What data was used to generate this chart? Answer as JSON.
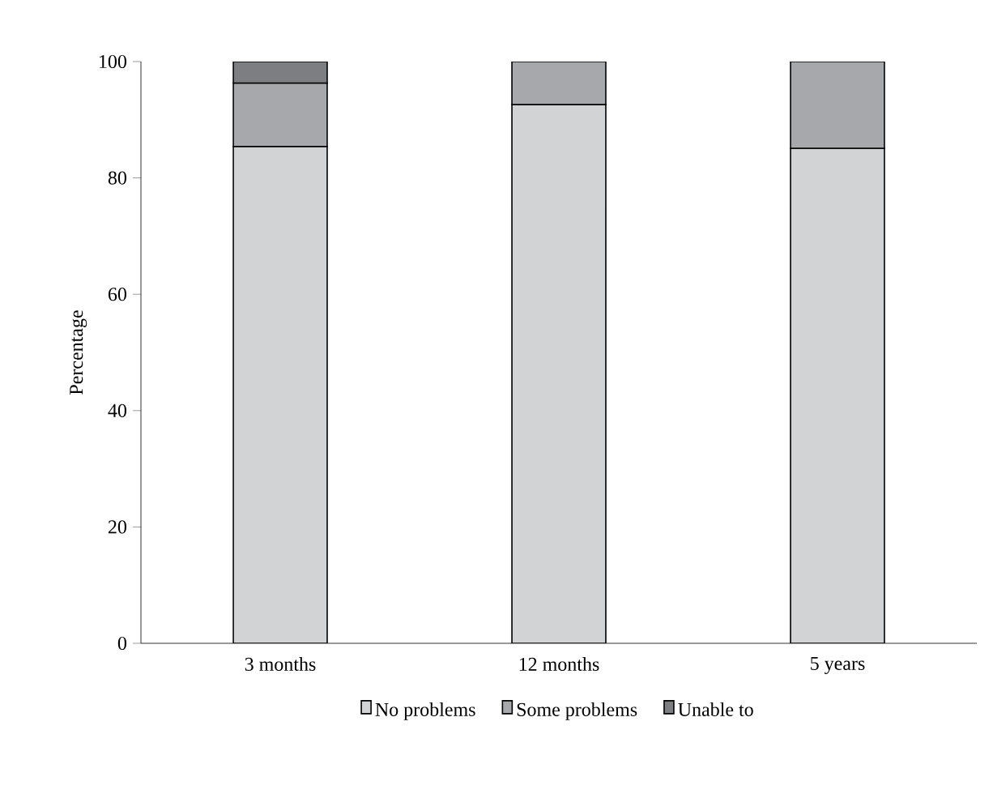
{
  "chart_data": {
    "type": "bar",
    "stacked": true,
    "ylabel": "Percentage",
    "categories": [
      "3 months",
      "12 months",
      "5 years"
    ],
    "series": [
      {
        "name": "No problems",
        "color": "#d2d3d5",
        "values": [
          85.4,
          92.6,
          85.1
        ]
      },
      {
        "name": "Some problems",
        "color": "#a7a8ab",
        "values": [
          10.9,
          7.4,
          14.9
        ]
      },
      {
        "name": "Unable to",
        "color": "#7d7e81",
        "values": [
          3.7,
          null,
          null
        ]
      }
    ],
    "ylim": [
      0,
      100
    ],
    "yticks": [
      0,
      20,
      40,
      60,
      80,
      100
    ],
    "legend": "bottom"
  }
}
